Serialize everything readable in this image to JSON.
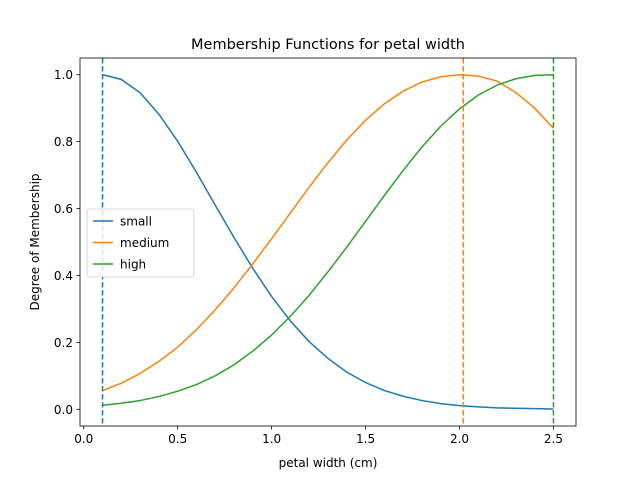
{
  "chart_data": {
    "type": "line",
    "title": "Membership Functions for petal width",
    "xlabel": "petal width (cm)",
    "ylabel": "Degree of Membership",
    "xlim": [
      -0.02,
      2.62
    ],
    "ylim": [
      -0.05,
      1.05
    ],
    "xticks": [
      0.0,
      0.5,
      1.0,
      1.5,
      2.0,
      2.5
    ],
    "xtick_labels": [
      "0.0",
      "0.5",
      "1.0",
      "1.5",
      "2.0",
      "2.5"
    ],
    "yticks": [
      0.0,
      0.2,
      0.4,
      0.6,
      0.8,
      1.0
    ],
    "ytick_labels": [
      "0.0",
      "0.2",
      "0.4",
      "0.6",
      "0.8",
      "1.0"
    ],
    "grid": false,
    "legend_placement": "center-left",
    "x": [
      0.1,
      0.2,
      0.3,
      0.4,
      0.5,
      0.6,
      0.7,
      0.8,
      0.9,
      1.0,
      1.1,
      1.2,
      1.3,
      1.4,
      1.5,
      1.6,
      1.7,
      1.8,
      1.9,
      2.0,
      2.1,
      2.2,
      2.3,
      2.4,
      2.5
    ],
    "series": [
      {
        "name": "small",
        "color": "#1f77b4",
        "values": [
          1.0,
          0.986,
          0.946,
          0.882,
          0.801,
          0.708,
          0.61,
          0.513,
          0.421,
          0.337,
          0.264,
          0.202,
          0.152,
          0.111,
          0.08,
          0.056,
          0.039,
          0.026,
          0.017,
          0.011,
          0.007,
          0.004,
          0.003,
          0.002,
          0.001
        ]
      },
      {
        "name": "medium",
        "color": "#ff7f0e",
        "values": [
          0.056,
          0.078,
          0.107,
          0.143,
          0.186,
          0.238,
          0.297,
          0.363,
          0.435,
          0.51,
          0.587,
          0.664,
          0.737,
          0.805,
          0.864,
          0.913,
          0.951,
          0.978,
          0.994,
          1.0,
          0.996,
          0.981,
          0.947,
          0.9,
          0.84
        ]
      },
      {
        "name": "high",
        "color": "#2ca02c",
        "values": [
          0.012,
          0.018,
          0.026,
          0.038,
          0.054,
          0.074,
          0.1,
          0.133,
          0.174,
          0.222,
          0.278,
          0.341,
          0.411,
          0.485,
          0.562,
          0.639,
          0.714,
          0.784,
          0.846,
          0.898,
          0.939,
          0.969,
          0.988,
          0.998,
          1.0
        ]
      }
    ],
    "vlines": [
      {
        "x": 0.1,
        "color": "#1f77b4",
        "style": "dashed"
      },
      {
        "x": 2.02,
        "color": "#ff7f0e",
        "style": "dashed"
      },
      {
        "x": 2.5,
        "color": "#2ca02c",
        "style": "dashed"
      }
    ]
  }
}
